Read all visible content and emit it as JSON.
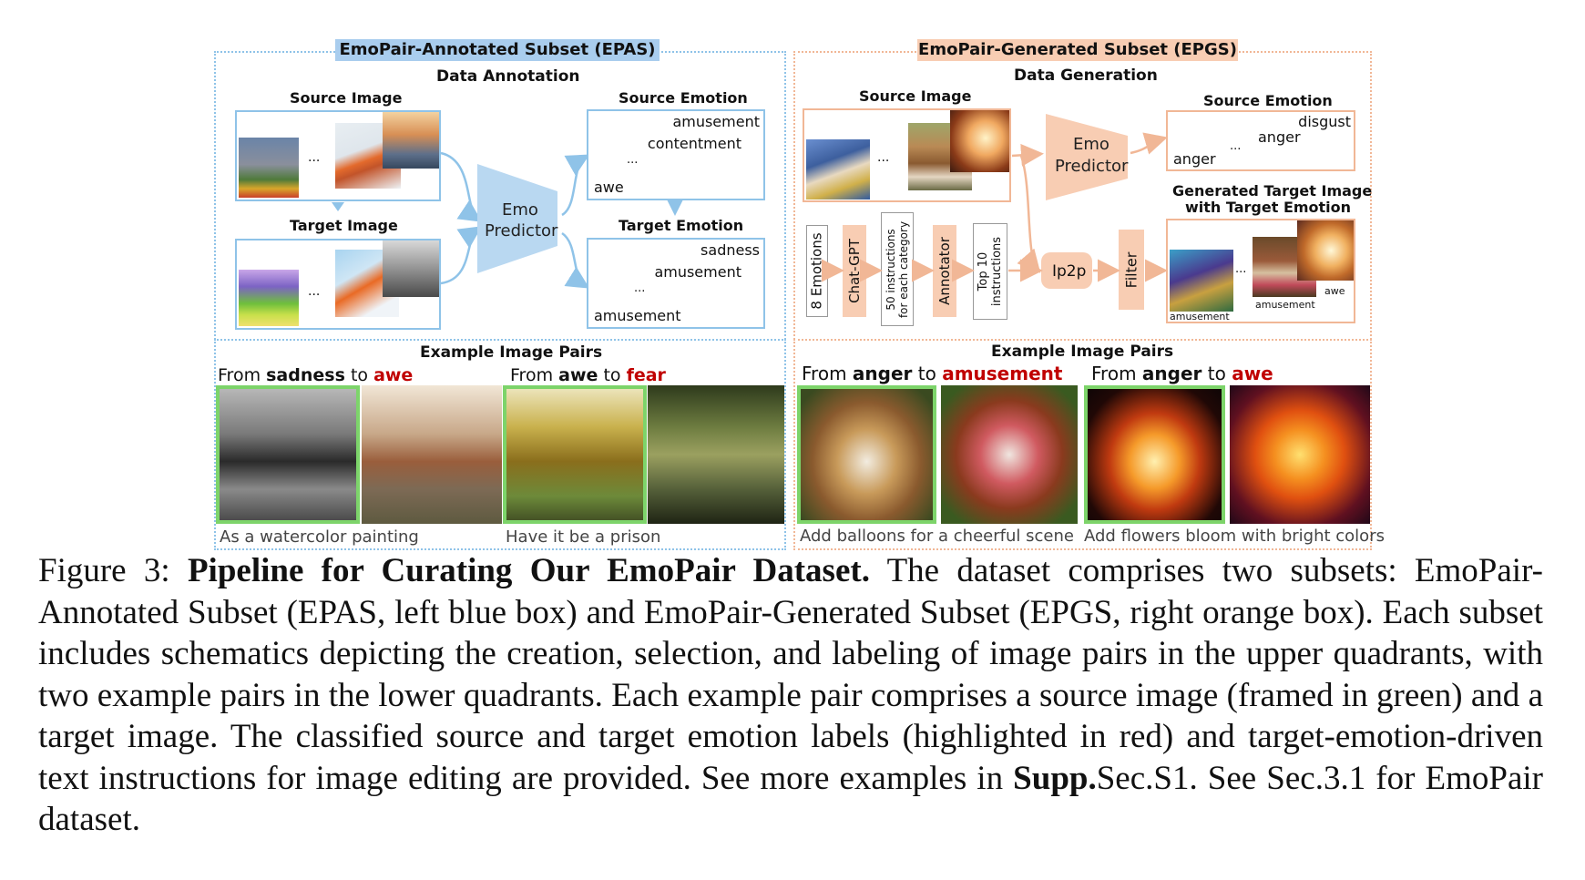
{
  "epas": {
    "tag": "EmoPair-Annotated Subset (EPAS)",
    "section_title": "Data Annotation",
    "source_image_label": "Source Image",
    "target_image_label": "Target  Image",
    "predictor_line1": "Emo",
    "predictor_line2": "Predictor",
    "source_emotion_label": "Source Emotion",
    "source_emotions": [
      "amusement",
      "contentment",
      "...",
      "awe"
    ],
    "target_emotion_label": "Target  Emotion",
    "target_emotions": [
      "sadness",
      "amusement",
      "...",
      "amusement"
    ],
    "ellipsis": "...",
    "examples_title": "Example Image Pairs",
    "pair1": {
      "from_word": "From",
      "source": "sadness",
      "to_word": "to",
      "target": "awe",
      "instruction": "As a watercolor painting"
    },
    "pair2": {
      "from_word": "From",
      "source": "awe",
      "to_word": "to",
      "target": "fear",
      "instruction": "Have it be a prison"
    }
  },
  "epgs": {
    "tag": "EmoPair-Generated Subset (EPGS)",
    "section_title": "Data Generation",
    "source_image_label": "Source Image",
    "predictor_line1": "Emo",
    "predictor_line2": "Predictor",
    "source_emotion_label": "Source Emotion",
    "source_emotions": [
      "disgust",
      "anger",
      "...",
      "anger"
    ],
    "generated_label_line1": "Generated Target Image",
    "generated_label_line2": "with Target  Emotion",
    "pipeline": {
      "emotions": "8 Emotions",
      "chatgpt": "Chat-GPT",
      "instructions_line1": "50 instructions",
      "instructions_line2": "for each category",
      "annotator": "Annotator",
      "top_line1": "Top 10",
      "top_line2": "instructions",
      "ip2p": "Ip2p",
      "filter": "Filter"
    },
    "generated_labels": [
      "amusement",
      "amusement",
      "awe"
    ],
    "ellipsis": "...",
    "examples_title": "Example Image Pairs",
    "pair1": {
      "from_word": "From",
      "source": "anger",
      "to_word": "to",
      "target": "amusement",
      "instruction": "Add balloons for a cheerful scene"
    },
    "pair2": {
      "from_word": "From",
      "source": "anger",
      "to_word": "to",
      "target": "awe",
      "instruction": "Add flowers bloom with bright colors"
    }
  },
  "caption": {
    "label": "Figure 3:",
    "bold_title": "Pipeline for Curating Our EmoPair Dataset.",
    "body1": "The dataset comprises two subsets: EmoPair-Annotated Subset (EPAS, left blue box) and EmoPair-Generated Subset (EPGS, right orange box). Each subset includes schematics depicting the creation, selection, and labeling of image pairs in the upper quadrants, with two example pairs in the lower quadrants. Each example pair comprises a source image (framed in green) and a target image. The classified source and target emotion labels (highlighted in red) and target-emotion-driven text instructions for image editing are provided. See more examples in",
    "supp": "Supp.",
    "body2": "Sec.S1. See Sec.3.1 for EmoPair dataset."
  },
  "colors": {
    "blue_accent": "#8fc3e8",
    "orange_accent": "#f1b796",
    "highlight_red": "#c00000",
    "source_frame_green": "#7dd46a"
  }
}
